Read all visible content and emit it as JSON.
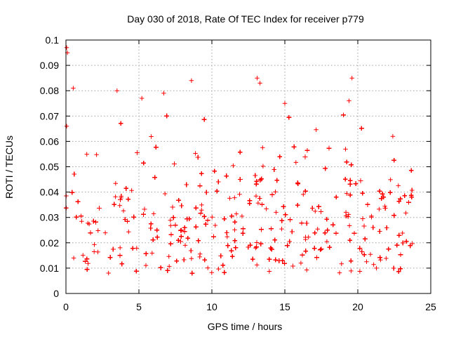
{
  "chart_data": {
    "type": "scatter",
    "title": "Day 030 of 2018, Rate Of TEC Index for receiver p779",
    "xlabel": "GPS time / hours",
    "ylabel": "ROTI / TECUs",
    "xlim": [
      0,
      25
    ],
    "ylim": [
      0,
      0.1
    ],
    "x_ticks": [
      0,
      5,
      10,
      15,
      20,
      25
    ],
    "y_ticks": [
      0,
      0.01,
      0.02,
      0.03,
      0.04,
      0.05,
      0.06,
      0.07,
      0.08,
      0.09,
      0.1
    ],
    "x_tick_labels": [
      "0",
      "5",
      "10",
      "15",
      "20",
      "25"
    ],
    "y_tick_labels": [
      "0",
      "0.01",
      "0.02",
      "0.03",
      "0.04",
      "0.05",
      "0.06",
      "0.07",
      "0.08",
      "0.09",
      "0.1"
    ],
    "grid": true,
    "marker": "+",
    "marker_color": "#ff0000",
    "series": [
      {
        "name": "ROTI p779",
        "x_range_hours": [
          0,
          23.8
        ],
        "typical_band": [
          0.008,
          0.04
        ],
        "notable_points": [
          {
            "x": 0.05,
            "y": 0.097
          },
          {
            "x": 0.1,
            "y": 0.095
          },
          {
            "x": 0.05,
            "y": 0.066
          },
          {
            "x": 0.5,
            "y": 0.081
          },
          {
            "x": 3.5,
            "y": 0.08
          },
          {
            "x": 5.2,
            "y": 0.077
          },
          {
            "x": 6.7,
            "y": 0.079
          },
          {
            "x": 8.6,
            "y": 0.084
          },
          {
            "x": 13.1,
            "y": 0.085
          },
          {
            "x": 13.3,
            "y": 0.083
          },
          {
            "x": 15.0,
            "y": 0.075
          },
          {
            "x": 19.6,
            "y": 0.085
          },
          {
            "x": 19.4,
            "y": 0.076
          },
          {
            "x": 22.4,
            "y": 0.062
          }
        ]
      }
    ]
  }
}
